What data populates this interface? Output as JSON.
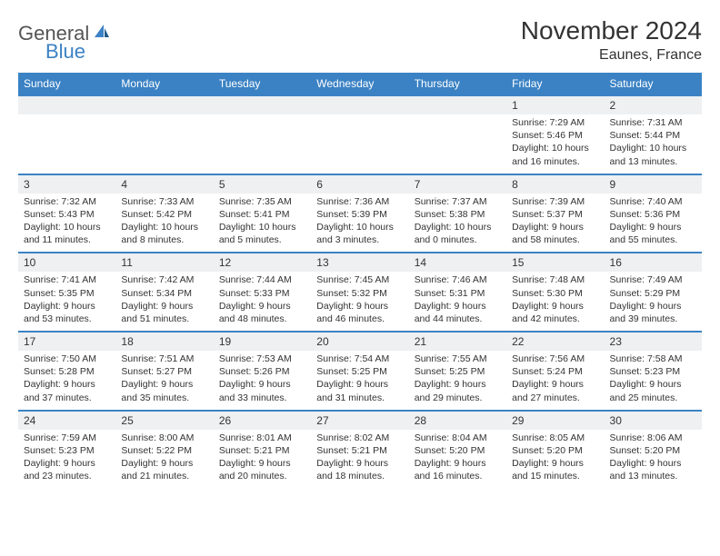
{
  "brand": {
    "text1": "General",
    "text2": "Blue"
  },
  "title": "November 2024",
  "location": "Eaunes, France",
  "colors": {
    "header_bg": "#3b82c4",
    "header_text": "#ffffff",
    "daynum_bg": "#eef0f2",
    "border": "#3b82c4",
    "body_text": "#333333"
  },
  "day_headers": [
    "Sunday",
    "Monday",
    "Tuesday",
    "Wednesday",
    "Thursday",
    "Friday",
    "Saturday"
  ],
  "weeks": [
    [
      null,
      null,
      null,
      null,
      null,
      {
        "n": "1",
        "sunrise": "7:29 AM",
        "sunset": "5:46 PM",
        "daylight": "10 hours and 16 minutes."
      },
      {
        "n": "2",
        "sunrise": "7:31 AM",
        "sunset": "5:44 PM",
        "daylight": "10 hours and 13 minutes."
      }
    ],
    [
      {
        "n": "3",
        "sunrise": "7:32 AM",
        "sunset": "5:43 PM",
        "daylight": "10 hours and 11 minutes."
      },
      {
        "n": "4",
        "sunrise": "7:33 AM",
        "sunset": "5:42 PM",
        "daylight": "10 hours and 8 minutes."
      },
      {
        "n": "5",
        "sunrise": "7:35 AM",
        "sunset": "5:41 PM",
        "daylight": "10 hours and 5 minutes."
      },
      {
        "n": "6",
        "sunrise": "7:36 AM",
        "sunset": "5:39 PM",
        "daylight": "10 hours and 3 minutes."
      },
      {
        "n": "7",
        "sunrise": "7:37 AM",
        "sunset": "5:38 PM",
        "daylight": "10 hours and 0 minutes."
      },
      {
        "n": "8",
        "sunrise": "7:39 AM",
        "sunset": "5:37 PM",
        "daylight": "9 hours and 58 minutes."
      },
      {
        "n": "9",
        "sunrise": "7:40 AM",
        "sunset": "5:36 PM",
        "daylight": "9 hours and 55 minutes."
      }
    ],
    [
      {
        "n": "10",
        "sunrise": "7:41 AM",
        "sunset": "5:35 PM",
        "daylight": "9 hours and 53 minutes."
      },
      {
        "n": "11",
        "sunrise": "7:42 AM",
        "sunset": "5:34 PM",
        "daylight": "9 hours and 51 minutes."
      },
      {
        "n": "12",
        "sunrise": "7:44 AM",
        "sunset": "5:33 PM",
        "daylight": "9 hours and 48 minutes."
      },
      {
        "n": "13",
        "sunrise": "7:45 AM",
        "sunset": "5:32 PM",
        "daylight": "9 hours and 46 minutes."
      },
      {
        "n": "14",
        "sunrise": "7:46 AM",
        "sunset": "5:31 PM",
        "daylight": "9 hours and 44 minutes."
      },
      {
        "n": "15",
        "sunrise": "7:48 AM",
        "sunset": "5:30 PM",
        "daylight": "9 hours and 42 minutes."
      },
      {
        "n": "16",
        "sunrise": "7:49 AM",
        "sunset": "5:29 PM",
        "daylight": "9 hours and 39 minutes."
      }
    ],
    [
      {
        "n": "17",
        "sunrise": "7:50 AM",
        "sunset": "5:28 PM",
        "daylight": "9 hours and 37 minutes."
      },
      {
        "n": "18",
        "sunrise": "7:51 AM",
        "sunset": "5:27 PM",
        "daylight": "9 hours and 35 minutes."
      },
      {
        "n": "19",
        "sunrise": "7:53 AM",
        "sunset": "5:26 PM",
        "daylight": "9 hours and 33 minutes."
      },
      {
        "n": "20",
        "sunrise": "7:54 AM",
        "sunset": "5:25 PM",
        "daylight": "9 hours and 31 minutes."
      },
      {
        "n": "21",
        "sunrise": "7:55 AM",
        "sunset": "5:25 PM",
        "daylight": "9 hours and 29 minutes."
      },
      {
        "n": "22",
        "sunrise": "7:56 AM",
        "sunset": "5:24 PM",
        "daylight": "9 hours and 27 minutes."
      },
      {
        "n": "23",
        "sunrise": "7:58 AM",
        "sunset": "5:23 PM",
        "daylight": "9 hours and 25 minutes."
      }
    ],
    [
      {
        "n": "24",
        "sunrise": "7:59 AM",
        "sunset": "5:23 PM",
        "daylight": "9 hours and 23 minutes."
      },
      {
        "n": "25",
        "sunrise": "8:00 AM",
        "sunset": "5:22 PM",
        "daylight": "9 hours and 21 minutes."
      },
      {
        "n": "26",
        "sunrise": "8:01 AM",
        "sunset": "5:21 PM",
        "daylight": "9 hours and 20 minutes."
      },
      {
        "n": "27",
        "sunrise": "8:02 AM",
        "sunset": "5:21 PM",
        "daylight": "9 hours and 18 minutes."
      },
      {
        "n": "28",
        "sunrise": "8:04 AM",
        "sunset": "5:20 PM",
        "daylight": "9 hours and 16 minutes."
      },
      {
        "n": "29",
        "sunrise": "8:05 AM",
        "sunset": "5:20 PM",
        "daylight": "9 hours and 15 minutes."
      },
      {
        "n": "30",
        "sunrise": "8:06 AM",
        "sunset": "5:20 PM",
        "daylight": "9 hours and 13 minutes."
      }
    ]
  ],
  "labels": {
    "sunrise": "Sunrise:",
    "sunset": "Sunset:",
    "daylight": "Daylight:"
  }
}
